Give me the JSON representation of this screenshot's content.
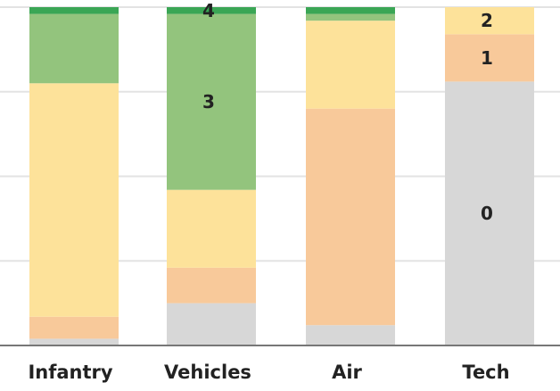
{
  "chart_data": {
    "type": "bar",
    "stacked": true,
    "categories": [
      "Infantry",
      "Vehicles",
      "Air",
      "Tech"
    ],
    "series": [
      {
        "name": "0",
        "color": "#d7d7d7",
        "values": [
          2,
          12.5,
          6,
          78
        ]
      },
      {
        "name": "1",
        "color": "#f8c99a",
        "values": [
          6.5,
          10.5,
          64,
          14
        ]
      },
      {
        "name": "2",
        "color": "#fde29a",
        "values": [
          69,
          23,
          26,
          8
        ]
      },
      {
        "name": "3",
        "color": "#93c47d",
        "values": [
          20.5,
          52,
          2,
          0
        ]
      },
      {
        "name": "4",
        "color": "#3aa655",
        "values": [
          2,
          2,
          2,
          0
        ]
      }
    ],
    "data_labels": [
      {
        "category": "Vehicles",
        "series": "3",
        "text": "3"
      },
      {
        "category": "Vehicles",
        "series": "4",
        "text": "4"
      },
      {
        "category": "Tech",
        "series": "0",
        "text": "0"
      },
      {
        "category": "Tech",
        "series": "1",
        "text": "1"
      },
      {
        "category": "Tech",
        "series": "2",
        "text": "2"
      }
    ],
    "title": "",
    "xlabel": "",
    "ylabel": "",
    "ylim": [
      0,
      100
    ],
    "yticks": [
      0,
      25,
      50,
      75,
      100
    ],
    "grid": true,
    "legend": "none"
  }
}
